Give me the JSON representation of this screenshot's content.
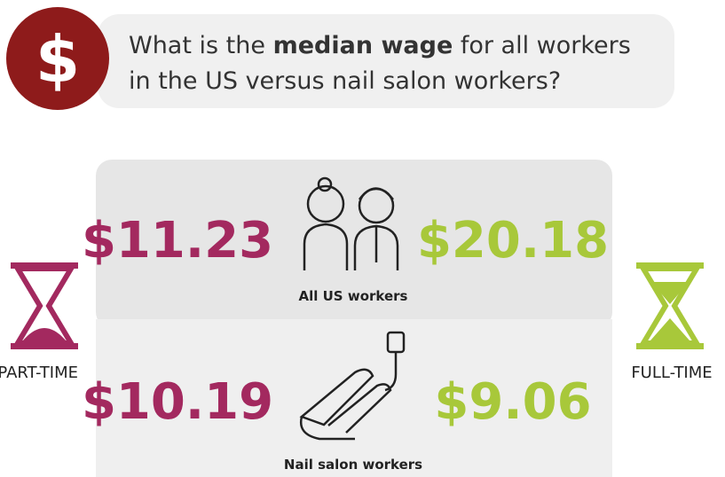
{
  "question": {
    "icon": "$",
    "line1": [
      "What is the ",
      "median wage",
      " for all workers"
    ],
    "line2": "in the US versus nail salon workers?"
  },
  "legend": {
    "left": "PART-TIME",
    "right": "FULL-TIME"
  },
  "rows": [
    {
      "label": "All US workers",
      "part_time": "$11.23",
      "full_time": "$20.18"
    },
    {
      "label": "Nail salon workers",
      "part_time": "$10.19",
      "full_time": "$9.06"
    }
  ]
}
